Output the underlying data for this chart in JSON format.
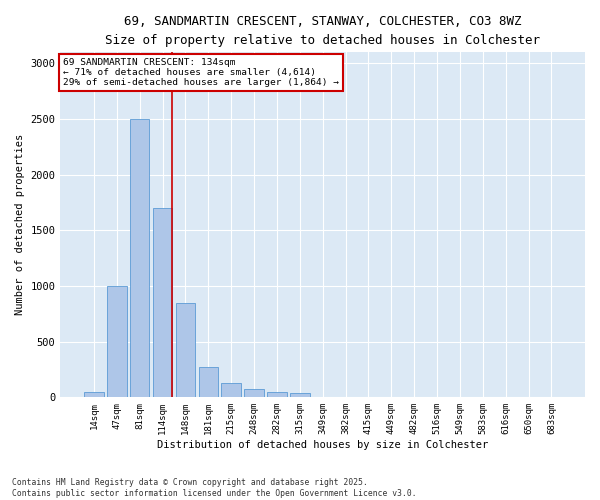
{
  "title_line1": "69, SANDMARTIN CRESCENT, STANWAY, COLCHESTER, CO3 8WZ",
  "title_line2": "Size of property relative to detached houses in Colchester",
  "xlabel": "Distribution of detached houses by size in Colchester",
  "ylabel": "Number of detached properties",
  "categories": [
    "14sqm",
    "47sqm",
    "81sqm",
    "114sqm",
    "148sqm",
    "181sqm",
    "215sqm",
    "248sqm",
    "282sqm",
    "315sqm",
    "349sqm",
    "382sqm",
    "415sqm",
    "449sqm",
    "482sqm",
    "516sqm",
    "549sqm",
    "583sqm",
    "616sqm",
    "650sqm",
    "683sqm"
  ],
  "values": [
    50,
    1000,
    2500,
    1700,
    850,
    270,
    130,
    75,
    50,
    35,
    0,
    0,
    0,
    0,
    0,
    0,
    0,
    0,
    0,
    0,
    0
  ],
  "bar_color": "#aec6e8",
  "bar_edge_color": "#5b9bd5",
  "plot_bg_color": "#dce9f5",
  "fig_bg_color": "#ffffff",
  "grid_color": "#ffffff",
  "vline_color": "#cc0000",
  "vline_x_index": 3,
  "annotation_text": "69 SANDMARTIN CRESCENT: 134sqm\n← 71% of detached houses are smaller (4,614)\n29% of semi-detached houses are larger (1,864) →",
  "annotation_box_color": "#ffffff",
  "annotation_box_edge": "#cc0000",
  "ylim": [
    0,
    3100
  ],
  "yticks": [
    0,
    500,
    1000,
    1500,
    2000,
    2500,
    3000
  ],
  "footnote": "Contains HM Land Registry data © Crown copyright and database right 2025.\nContains public sector information licensed under the Open Government Licence v3.0."
}
